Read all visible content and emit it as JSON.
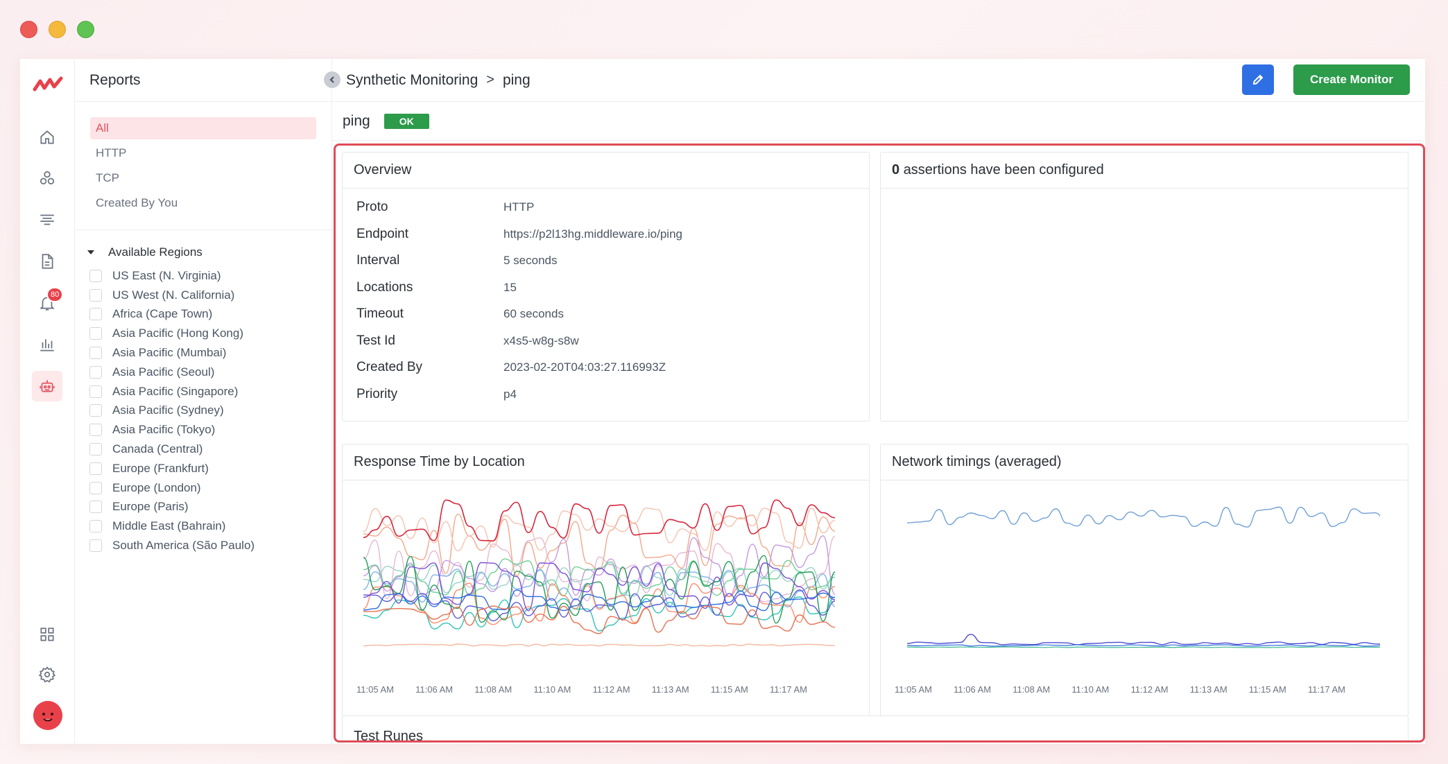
{
  "sidebar": {
    "title": "Reports",
    "filters": [
      "All",
      "HTTP",
      "TCP",
      "Created By You"
    ],
    "regions_header": "Available Regions",
    "regions": [
      "US East (N. Virginia)",
      "US West (N. California)",
      "Africa (Cape Town)",
      "Asia Pacific (Hong Kong)",
      "Asia Pacific (Mumbai)",
      "Asia Pacific (Seoul)",
      "Asia Pacific (Singapore)",
      "Asia Pacific (Sydney)",
      "Asia Pacific (Tokyo)",
      "Canada (Central)",
      "Europe (Frankfurt)",
      "Europe (London)",
      "Europe (Paris)",
      "Middle East (Bahrain)",
      "South America (São Paulo)"
    ]
  },
  "rail": {
    "notification_count": "80"
  },
  "header": {
    "breadcrumb_root": "Synthetic Monitoring",
    "breadcrumb_sep": ">",
    "breadcrumb_current": "ping",
    "create_label": "Create Monitor"
  },
  "monitor": {
    "name": "ping",
    "status": "OK"
  },
  "overview": {
    "title": "Overview",
    "rows": [
      {
        "k": "Proto",
        "v": "HTTP"
      },
      {
        "k": "Endpoint",
        "v": "https://p2l13hg.middleware.io/ping"
      },
      {
        "k": "Interval",
        "v": "5 seconds"
      },
      {
        "k": "Locations",
        "v": "15"
      },
      {
        "k": "Timeout",
        "v": "60 seconds"
      },
      {
        "k": "Test Id",
        "v": "x4s5-w8g-s8w"
      },
      {
        "k": "Created By",
        "v": "2023-02-20T04:03:27.116993Z"
      },
      {
        "k": "Priority",
        "v": "p4"
      }
    ]
  },
  "assertions": {
    "count": "0",
    "text": "assertions have been configured"
  },
  "response_chart": {
    "title": "Response Time by Location",
    "ticks": [
      "11:05 AM",
      "11:06 AM",
      "11:08 AM",
      "11:10 AM",
      "11:12 AM",
      "11:13 AM",
      "11:15 AM",
      "11:17 AM"
    ]
  },
  "network_chart": {
    "title": "Network timings (averaged)",
    "ticks": [
      "11:05 AM",
      "11:06 AM",
      "11:08 AM",
      "11:10 AM",
      "11:12 AM",
      "11:13 AM",
      "11:15 AM",
      "11:17 AM"
    ]
  },
  "test_runs": {
    "title": "Test Runes"
  },
  "colors": {
    "accent": "#e04a57",
    "primary_green": "#2c9b4a",
    "edit_blue": "#2f6fe4"
  }
}
